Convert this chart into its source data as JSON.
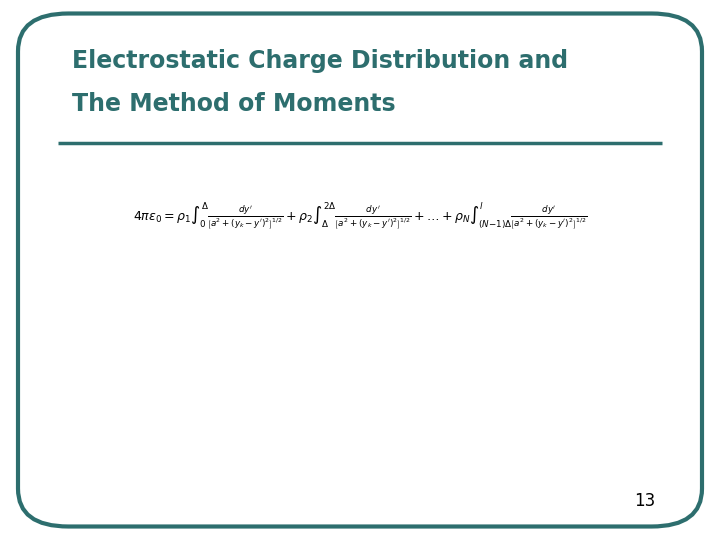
{
  "title_line1": "Electrostatic Charge Distribution and",
  "title_line2": "The Method of Moments",
  "title_color": "#2d6e6e",
  "background_color": "#ffffff",
  "border_color": "#2d6e6e",
  "slide_number": "13",
  "equation": "4\\pi\\varepsilon_0 = \\rho_1\\int_0^{\\Delta}\\frac{dy'}{\\left[a^2+(y_k-y')^2\\right]^{1/2}} + \\rho_2\\int_{\\Delta}^{2\\Delta}\\frac{dy'}{\\left[a^2+(y_k-y')^2\\right]^{1/2}} + \\ldots + \\rho_N\\int_{(N\\!-\\!1)\\Delta}^{l}\\frac{dy'}{\\left[a^2+(y_k-y')^2\\right]^{1/2}}",
  "fig_width": 7.2,
  "fig_height": 5.4,
  "dpi": 100
}
